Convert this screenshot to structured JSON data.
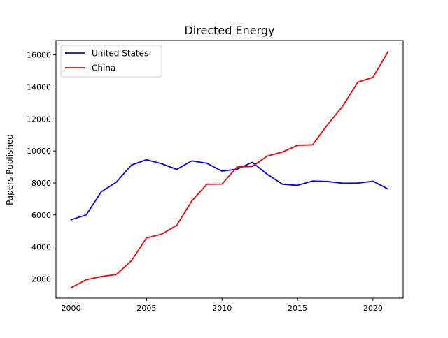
{
  "chart_data": {
    "type": "line",
    "title": "Directed Energy",
    "xlabel": "",
    "ylabel": "Papers Published",
    "xlim": [
      1999,
      2022
    ],
    "ylim": [
      800,
      16900
    ],
    "x_ticks": [
      2000,
      2005,
      2010,
      2015,
      2020
    ],
    "y_ticks": [
      2000,
      4000,
      6000,
      8000,
      10000,
      12000,
      14000,
      16000
    ],
    "legend_position": "top-left",
    "grid": false,
    "x": [
      2000,
      2001,
      2002,
      2003,
      2004,
      2005,
      2006,
      2007,
      2008,
      2009,
      2010,
      2011,
      2012,
      2013,
      2014,
      2015,
      2016,
      2017,
      2018,
      2019,
      2020,
      2021
    ],
    "series": [
      {
        "name": "United States",
        "color": "#0000ff",
        "values": [
          5700,
          6000,
          7450,
          8050,
          9120,
          9450,
          9200,
          8850,
          9380,
          9230,
          8740,
          8860,
          9290,
          8540,
          7920,
          7850,
          8120,
          8090,
          7980,
          7990,
          8110,
          7620
        ]
      },
      {
        "name": "China",
        "color": "#ff0000",
        "values": [
          1450,
          1950,
          2150,
          2280,
          3140,
          4570,
          4800,
          5350,
          6880,
          7920,
          7930,
          9000,
          9030,
          9680,
          9930,
          10350,
          10380,
          11650,
          12800,
          14300,
          14600,
          16200
        ]
      }
    ]
  }
}
